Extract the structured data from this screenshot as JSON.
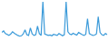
{
  "chart_data": {
    "type": "line",
    "categories": [
      null,
      null,
      null,
      null,
      null,
      null,
      null,
      null,
      null,
      null,
      null,
      null,
      null,
      null,
      null,
      null,
      null,
      null,
      null,
      null,
      null,
      null,
      null,
      null,
      null,
      null,
      null,
      null,
      null,
      null,
      null,
      null,
      null,
      null,
      null,
      null,
      null,
      null,
      null,
      null,
      null,
      null,
      null,
      null,
      null,
      null,
      null,
      null,
      null,
      null,
      null,
      null,
      null,
      null,
      null,
      null,
      null,
      null,
      null,
      null
    ],
    "values": [
      18,
      22,
      15,
      12,
      10,
      14,
      20,
      16,
      12,
      10,
      8,
      9,
      14,
      25,
      12,
      10,
      30,
      14,
      10,
      12,
      35,
      15,
      10,
      100,
      14,
      12,
      10,
      11,
      9,
      13,
      12,
      10,
      15,
      11,
      9,
      12,
      100,
      20,
      14,
      12,
      16,
      13,
      11,
      18,
      14,
      12,
      10,
      13,
      55,
      15,
      12,
      10,
      11,
      14,
      60,
      18,
      12,
      10,
      15,
      12
    ],
    "color": "#3a9ad9",
    "ylim": [
      0,
      100
    ],
    "grid": false,
    "tick_labels": false
  }
}
